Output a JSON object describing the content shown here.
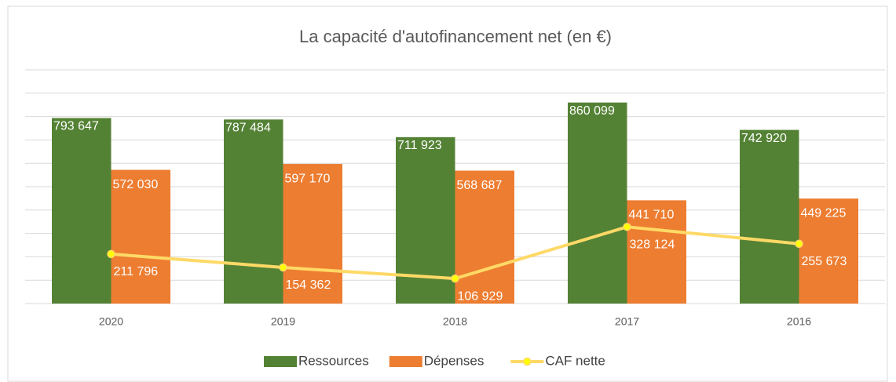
{
  "chart_data": {
    "type": "bar_line",
    "title": "La capacité d'autofinancement net (en €)",
    "categories": [
      "2020",
      "2019",
      "2018",
      "2017",
      "2016"
    ],
    "series": [
      {
        "name": "Ressources",
        "type": "bar",
        "color": "#548235",
        "values": [
          793647,
          787484,
          711923,
          860099,
          742920
        ],
        "value_labels": [
          "793 647",
          "787 484",
          "711 923",
          "860 099",
          "742 920"
        ]
      },
      {
        "name": "Dépenses",
        "type": "bar",
        "color": "#ed7d31",
        "values": [
          572030,
          597170,
          568687,
          441710,
          449225
        ],
        "value_labels": [
          "572 030",
          "597 170",
          "568 687",
          "441 710",
          "449 225"
        ]
      },
      {
        "name": "CAF nette",
        "type": "line",
        "color": "#ffd966",
        "values": [
          211796,
          154362,
          106929,
          328124,
          255673
        ],
        "value_labels": [
          "211 796",
          "154 362",
          "106 929",
          "328 124",
          "255 673"
        ]
      }
    ],
    "ylim": [
      0,
      1000000
    ],
    "yticks": [
      0,
      100000,
      200000,
      300000,
      400000,
      500000,
      600000,
      700000,
      800000,
      900000,
      1000000
    ],
    "grid": true,
    "legend": "bottom"
  }
}
